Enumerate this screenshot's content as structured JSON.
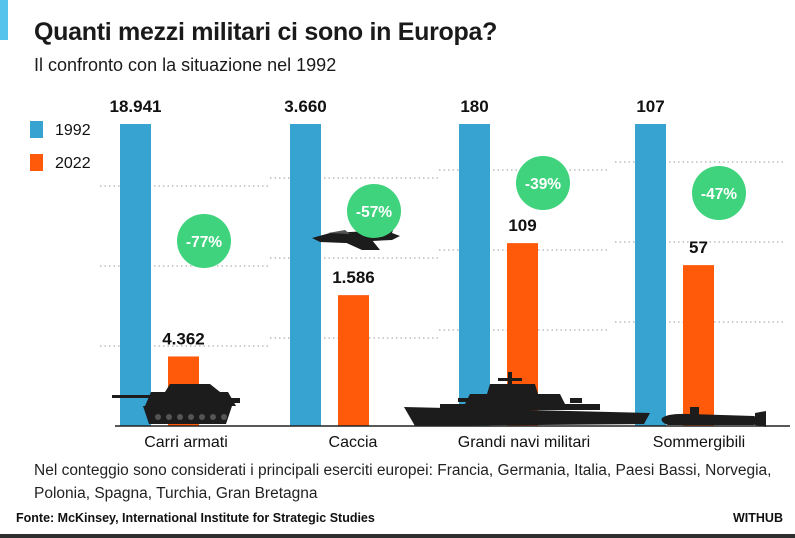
{
  "title": "Quanti mezzi militari ci sono in Europa?",
  "subtitle": "Il confronto con la situazione nel 1992",
  "note": "Nel conteggio sono considerati i principali eserciti europei: Francia, Germania, Italia, Paesi Bassi, Norvegia, Polonia, Spagna, Turchia, Gran Bretagna",
  "source": "Fonte: McKinsey, International Institute for Strategic Studies",
  "brand": "WITHUB",
  "colors": {
    "series_1992": "#36a3d0",
    "series_2022": "#ff5a0a",
    "change_badge": "#3ed37c",
    "accent": "#55c3ec",
    "silhouette": "#1c1c1c"
  },
  "chart_data": {
    "type": "bar",
    "title": "Quanti mezzi militari ci sono in Europa?",
    "subtitle": "Il confronto con la situazione nel 1992",
    "categories": [
      "Carri armati",
      "Caccia",
      "Grandi navi militari",
      "Sommergibili"
    ],
    "series": [
      {
        "name": "1992",
        "values": [
          18941,
          3660,
          180,
          107
        ],
        "labels": [
          "18.941",
          "3.660",
          "180",
          "107"
        ]
      },
      {
        "name": "2022",
        "values": [
          4362,
          1586,
          109,
          57
        ],
        "labels": [
          "4.362",
          "1.586",
          "109",
          "57"
        ]
      }
    ],
    "changes": [
      "-77%",
      "-57%",
      "-39%",
      "-47%"
    ],
    "scaling": "each category scaled independently to its 1992 value",
    "legend": {
      "placement": "top-left",
      "entries": [
        "1992",
        "2022"
      ]
    },
    "icons": [
      "tank-icon",
      "fighter-jet-icon",
      "warship-icon",
      "submarine-icon"
    ],
    "grid": "dotted"
  }
}
